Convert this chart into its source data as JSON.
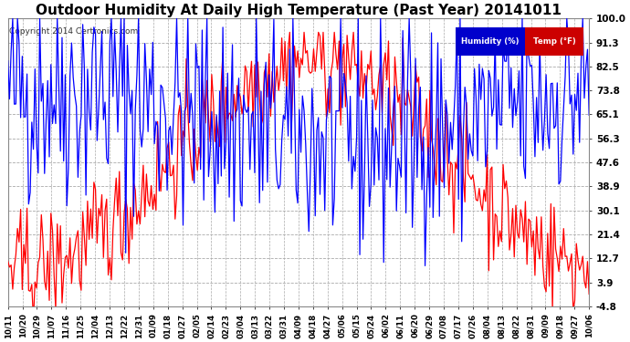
{
  "title": "Outdoor Humidity At Daily High Temperature (Past Year) 20141011",
  "copyright": "Copyright 2014 Certronics.com",
  "yticks": [
    100.0,
    91.3,
    82.5,
    73.8,
    65.1,
    56.3,
    47.6,
    38.9,
    30.1,
    21.4,
    12.7,
    3.9,
    -4.8
  ],
  "ylim": [
    -4.8,
    100.0
  ],
  "xtick_labels": [
    "10/11",
    "10/20",
    "10/29",
    "11/07",
    "11/16",
    "11/25",
    "12/04",
    "12/13",
    "12/22",
    "12/31",
    "01/09",
    "01/18",
    "01/27",
    "02/05",
    "02/14",
    "02/23",
    "03/04",
    "03/13",
    "03/22",
    "03/31",
    "04/09",
    "04/18",
    "04/27",
    "05/06",
    "05/15",
    "05/24",
    "06/02",
    "06/11",
    "06/20",
    "06/29",
    "07/08",
    "07/17",
    "07/26",
    "08/04",
    "08/13",
    "08/22",
    "08/31",
    "09/09",
    "09/18",
    "09/27",
    "10/06"
  ],
  "humidity_color": "#0000ff",
  "temp_color": "#ff0000",
  "black_color": "#000000",
  "bg_color": "#ffffff",
  "grid_color": "#aaaaaa",
  "legend_humidity_bg": "#0000cc",
  "legend_temp_bg": "#cc0000",
  "title_fontsize": 11,
  "axis_fontsize": 7.5,
  "n_points": 366
}
